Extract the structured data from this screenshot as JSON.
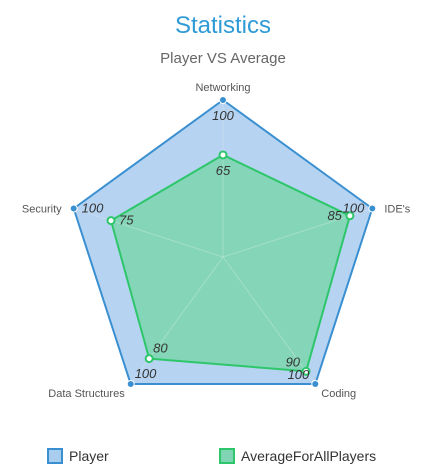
{
  "chart_data": {
    "type": "radar",
    "title": "Statistics",
    "subtitle": "Player VS Average",
    "axes": [
      "Networking",
      "IDE's",
      "Coding",
      "Data Structures",
      "Security"
    ],
    "max": 100,
    "series": [
      {
        "name": "Player",
        "values": [
          100,
          100,
          100,
          100,
          100
        ],
        "stroke": "#3a8fd1",
        "fill": "#a9cdef"
      },
      {
        "name": "AverageForAllPlayers",
        "values": [
          65,
          85,
          90,
          80,
          75
        ],
        "stroke": "#2ec66b",
        "fill": "#7fd5b3"
      }
    ],
    "legend_position": "bottom"
  },
  "colors": {
    "title": "#2e9ad6",
    "subtitle": "#666666",
    "grid": "#d8d8d8"
  }
}
